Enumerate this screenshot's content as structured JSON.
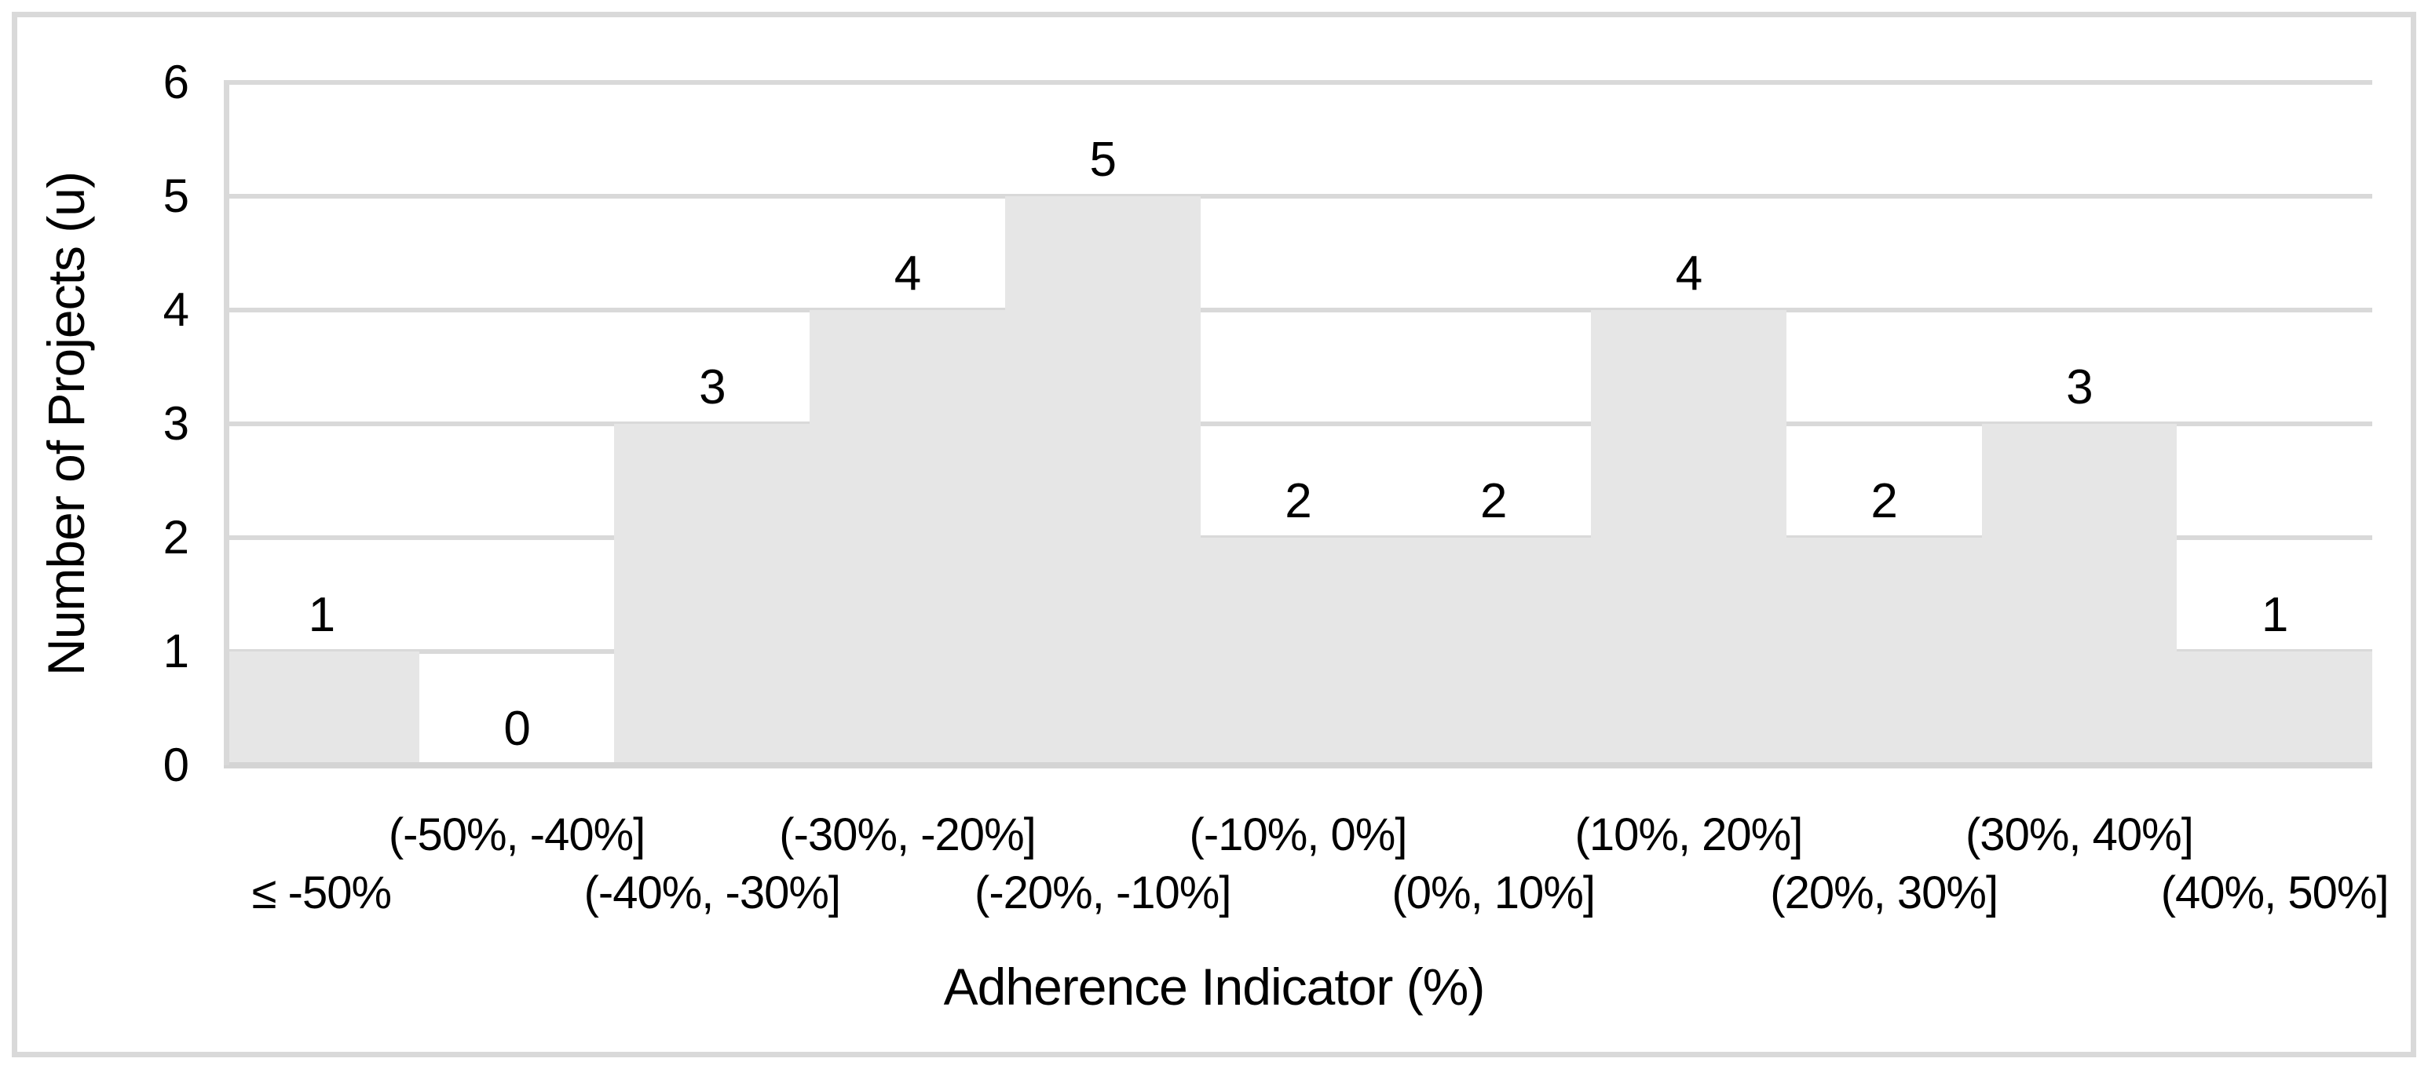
{
  "chart_data": {
    "type": "bar",
    "subtype": "histogram",
    "title": "",
    "categories": [
      "≤ -50%",
      "(-50%, -40%]",
      "(-40%, -30%]",
      "(-30%, -20%]",
      "(-20%, -10%]",
      "(-10%, 0%]",
      "(0%, 10%]",
      "(10%, 20%]",
      "(20%, 30%]",
      "(30%, 40%]",
      "(40%, 50%]"
    ],
    "values": [
      1,
      0,
      3,
      4,
      5,
      2,
      2,
      4,
      2,
      3,
      1
    ],
    "xlabel": "Adherence Indicator (%)",
    "ylabel": "Number of Projects (u)",
    "ylim": [
      0,
      6
    ],
    "yticks": [
      0,
      1,
      2,
      3,
      4,
      5,
      6
    ],
    "grid": "horizontal",
    "legend": "none",
    "data_labels_shown": true,
    "bar_gap": 0,
    "colors": {
      "bar_fill": "#E6E6E6",
      "gridline": "#D9D9D9",
      "axis_line": "#D4D4D4",
      "frame_border": "#D9D9D9",
      "text": "#000000",
      "background": "#FFFFFF"
    }
  }
}
